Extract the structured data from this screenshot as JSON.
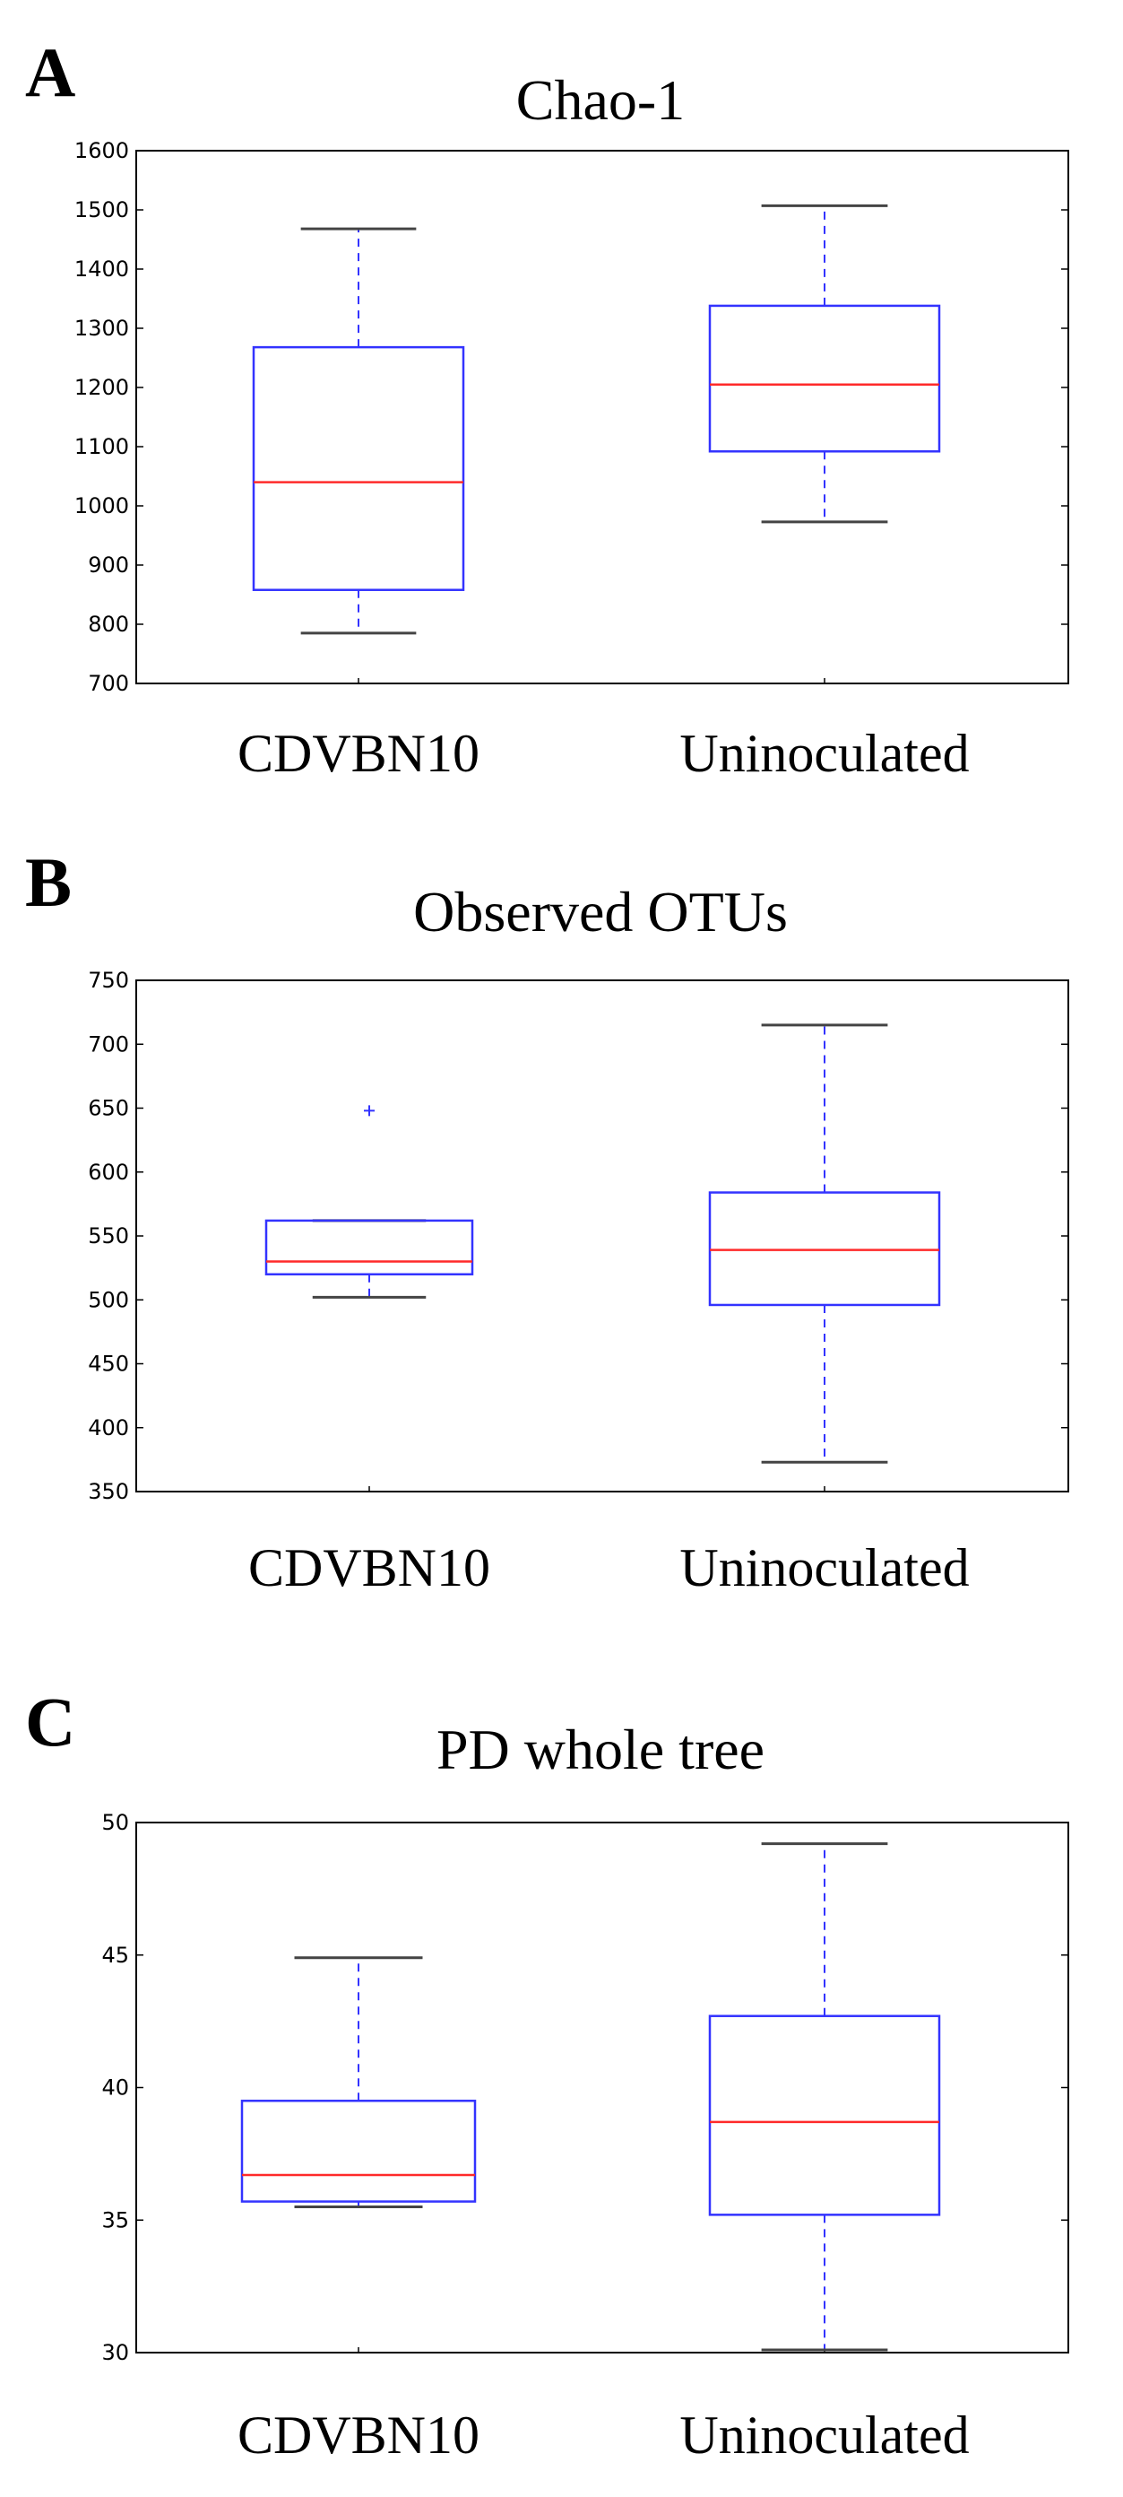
{
  "panels": [
    {
      "letter": "A",
      "chart_data": {
        "type": "box",
        "title": "Chao-1",
        "categories": [
          "CDVBN10",
          "Uninoculated"
        ],
        "ylim": [
          700,
          1600
        ],
        "yticks": [
          700,
          800,
          900,
          1000,
          1100,
          1200,
          1300,
          1400,
          1500,
          1600
        ],
        "boxes": [
          {
            "category": "CDVBN10",
            "whisker_low": 785,
            "q1": 858,
            "median": 1040,
            "q3": 1268,
            "whisker_high": 1468,
            "outliers": []
          },
          {
            "category": "Uninoculated",
            "whisker_low": 973,
            "q1": 1092,
            "median": 1205,
            "q3": 1338,
            "whisker_high": 1507,
            "outliers": []
          }
        ],
        "grid": false,
        "colors": {
          "box": "#3333ff",
          "median": "#ff2a2a",
          "cap": "#444444",
          "outlier": "#3333ff"
        }
      }
    },
    {
      "letter": "B",
      "chart_data": {
        "type": "box",
        "title": "Observed OTUs",
        "categories": [
          "CDVBN10",
          "Uninoculated"
        ],
        "ylim": [
          350,
          750
        ],
        "yticks": [
          350,
          400,
          450,
          500,
          550,
          600,
          650,
          700,
          750
        ],
        "boxes": [
          {
            "category": "CDVBN10",
            "whisker_low": 502,
            "q1": 520,
            "median": 530,
            "q3": 562,
            "whisker_high": 562,
            "outliers": [
              648
            ]
          },
          {
            "category": "Uninoculated",
            "whisker_low": 373,
            "q1": 496,
            "median": 539,
            "q3": 584,
            "whisker_high": 715,
            "outliers": []
          }
        ],
        "grid": false,
        "colors": {
          "box": "#3333ff",
          "median": "#ff2a2a",
          "cap": "#444444",
          "outlier": "#3333ff"
        }
      }
    },
    {
      "letter": "C",
      "chart_data": {
        "type": "box",
        "title": "PD whole tree",
        "categories": [
          "CDVBN10",
          "Uninoculated"
        ],
        "ylim": [
          30,
          50
        ],
        "yticks": [
          30,
          35,
          40,
          45,
          50
        ],
        "boxes": [
          {
            "category": "CDVBN10",
            "whisker_low": 35.5,
            "q1": 35.7,
            "median": 36.7,
            "q3": 39.5,
            "whisker_high": 44.9,
            "outliers": []
          },
          {
            "category": "Uninoculated",
            "whisker_low": 30.1,
            "q1": 35.2,
            "median": 38.7,
            "q3": 42.7,
            "whisker_high": 49.2,
            "outliers": []
          }
        ],
        "grid": false,
        "colors": {
          "box": "#3333ff",
          "median": "#ff2a2a",
          "cap": "#444444",
          "outlier": "#3333ff"
        }
      }
    }
  ]
}
